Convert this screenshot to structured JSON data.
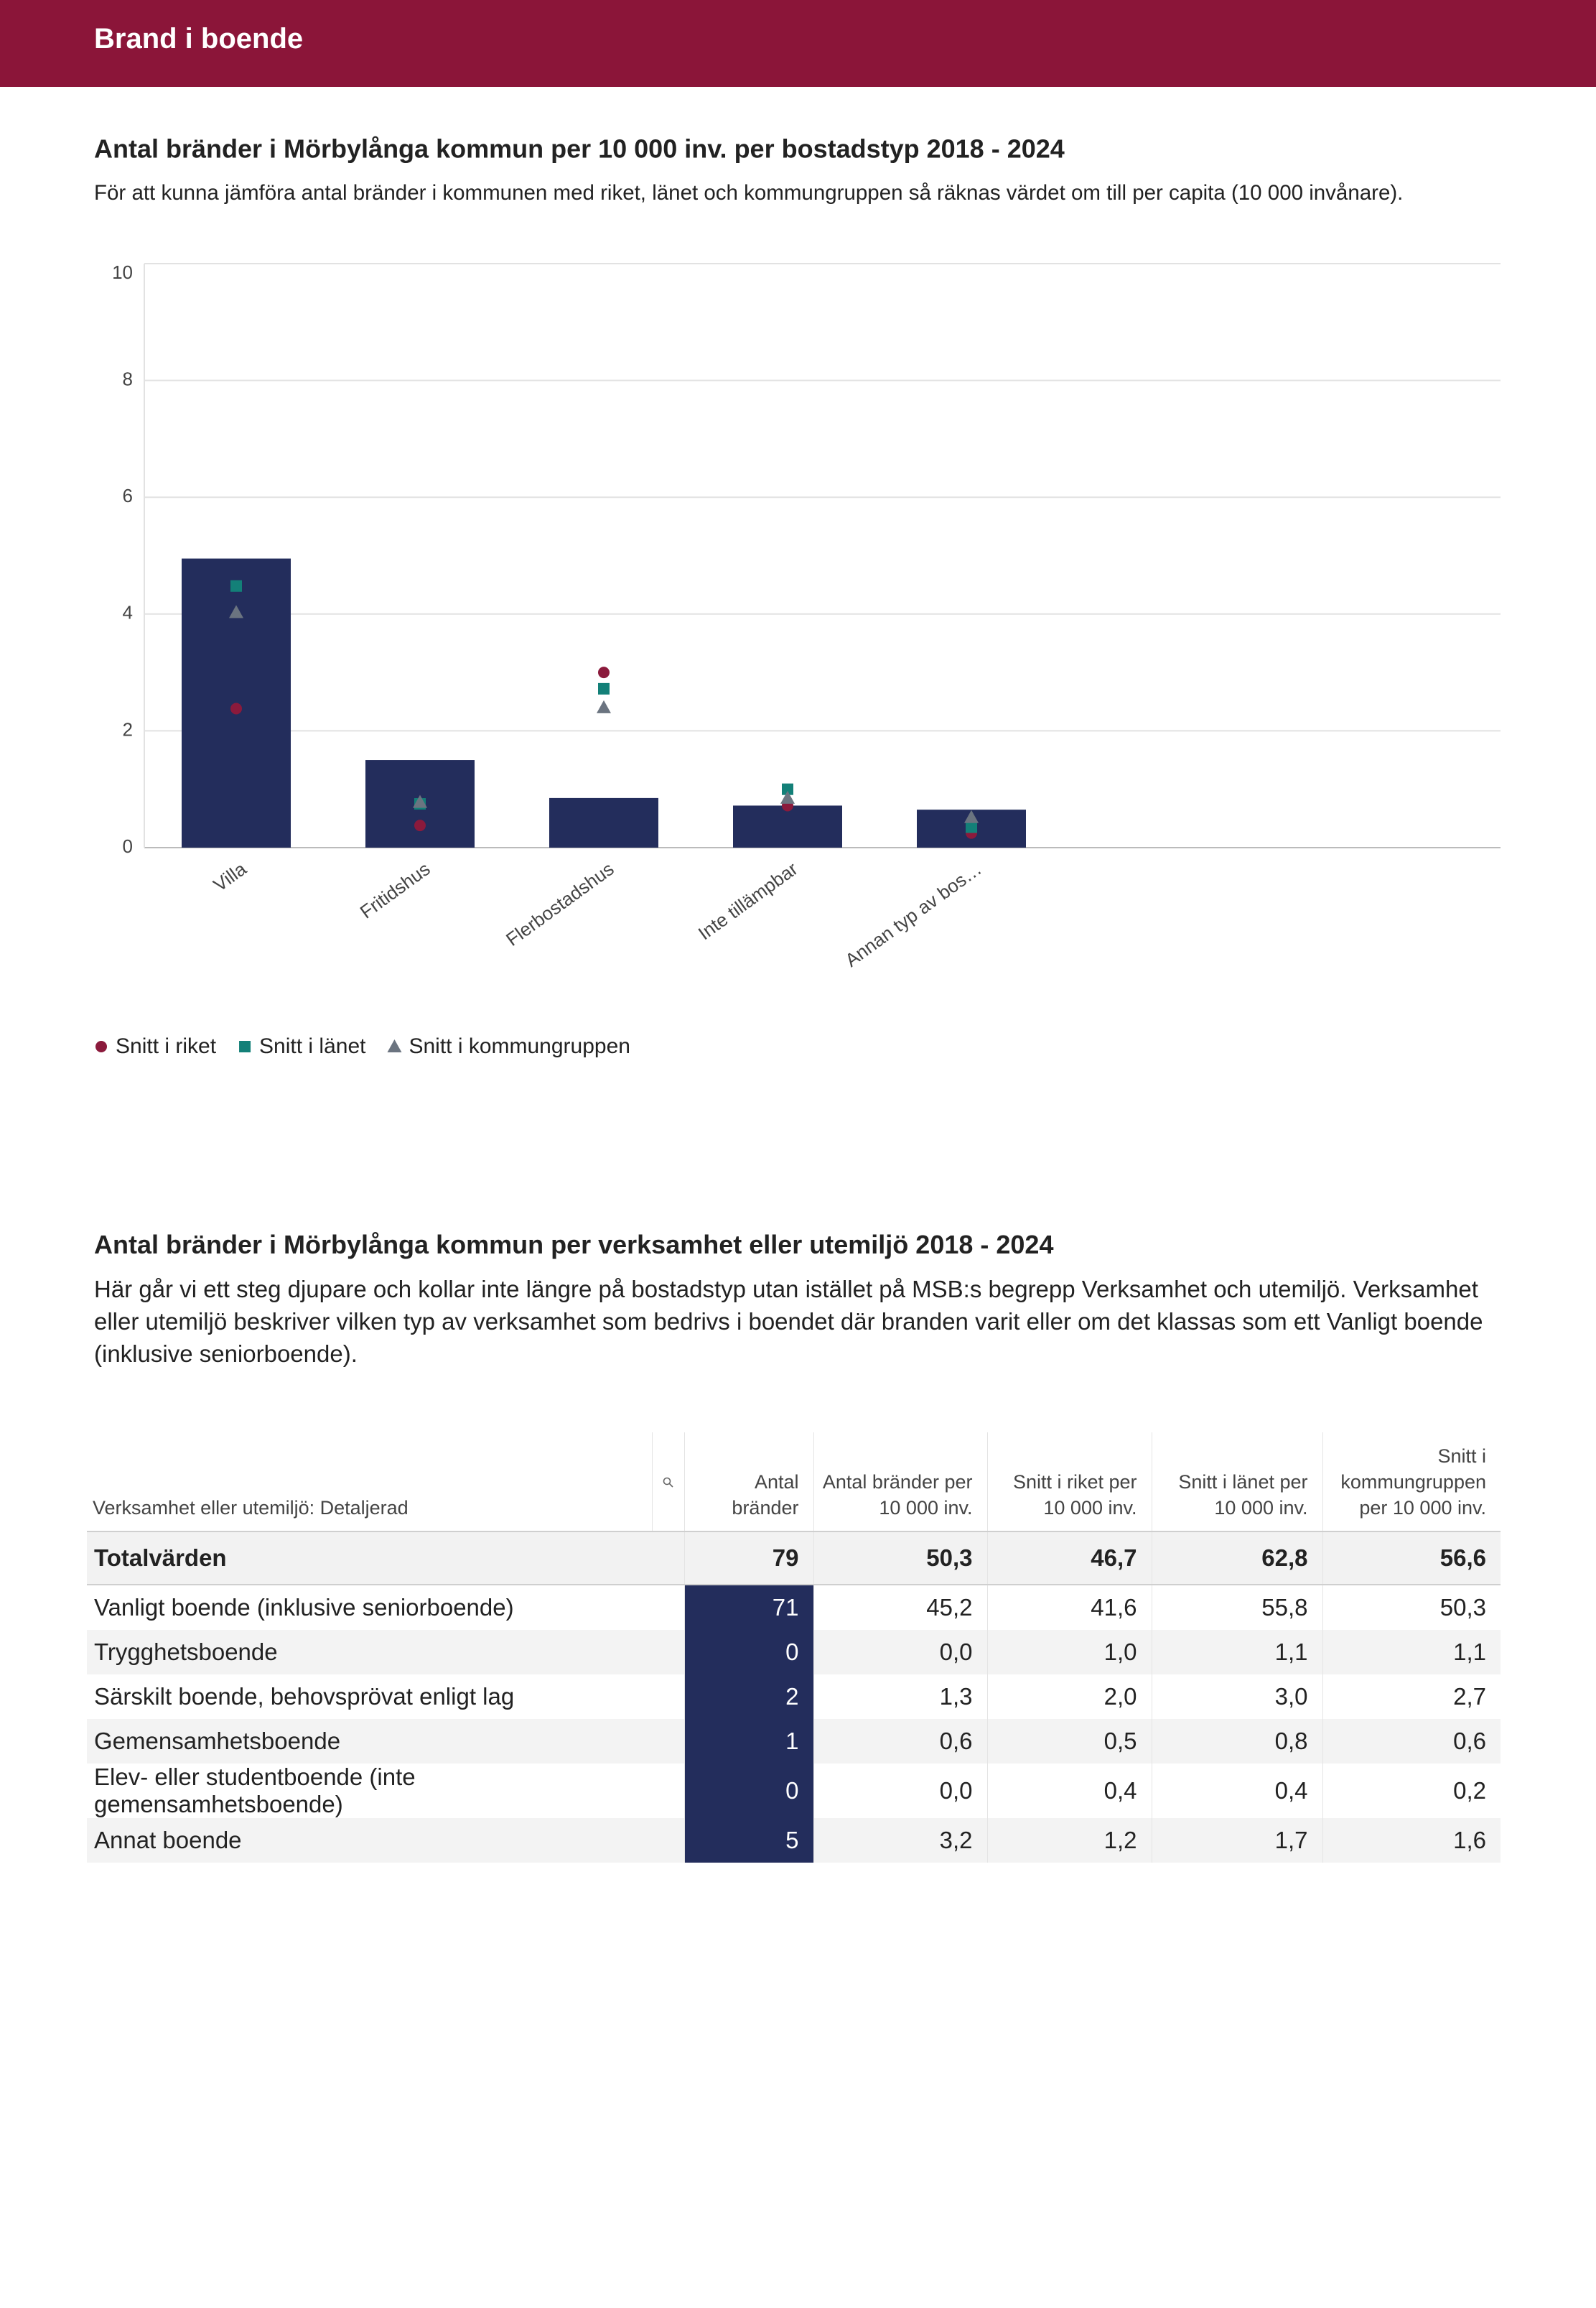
{
  "header": {
    "title": "Brand i boende"
  },
  "chart_data": {
    "type": "bar",
    "title": "Antal bränder i Mörbylånga kommun per 10 000 inv. per bostadstyp 2018 - 2024",
    "subtitle": "För att kunna jämföra antal bränder i kommunen med riket, länet och kommungruppen så räknas värdet om till per capita (10 000 invånare).",
    "categories": [
      "Villa",
      "Fritidshus",
      "Flerbostadshus",
      "Inte tillämpbar",
      "Annan typ av bos…"
    ],
    "values": [
      4.95,
      1.5,
      0.85,
      0.72,
      0.65
    ],
    "color": "#232d5c",
    "series": [
      {
        "name": "Snitt i riket",
        "color": "#8b1a3c",
        "marker": "circle",
        "values": [
          2.38,
          0.38,
          3.0,
          0.72,
          0.25
        ]
      },
      {
        "name": "Snitt i länet",
        "color": "#138078",
        "marker": "square",
        "values": [
          4.48,
          0.75,
          2.72,
          1.0,
          0.35
        ]
      },
      {
        "name": "Snitt i kommungruppen",
        "color": "#6b7480",
        "marker": "triangle",
        "values": [
          4.03,
          0.78,
          2.4,
          0.85,
          0.52
        ]
      }
    ],
    "ylim": [
      0,
      10
    ],
    "yticks": [
      0,
      2,
      4,
      6,
      8,
      10
    ],
    "grid": true,
    "legend": "bottom-left"
  },
  "section2": {
    "title": "Antal bränder i Mörbylånga kommun per verksamhet eller utemiljö 2018 - 2024",
    "text": "Här går vi ett steg djupare och kollar inte längre på bostadstyp utan istället på MSB:s begrepp Verksamhet och utemiljö. Verksamhet eller utemiljö beskriver vilken typ av verksamhet som bedrivs i boendet där branden varit eller om det klassas som ett Vanligt boende (inklusive seniorboende)."
  },
  "table": {
    "columns": [
      "Verksamhet eller utemiljö: Detaljerad",
      "Antal bränder",
      "Antal bränder per 10 000 inv.",
      "Snitt i riket per 10 000 inv.",
      "Snitt i länet per 10 000 inv.",
      "Snitt i kommungruppen per 10 000 inv."
    ],
    "total": [
      "Totalvärden",
      "79",
      "50,3",
      "46,7",
      "62,8",
      "56,6"
    ],
    "rows": [
      [
        "Vanligt boende (inklusive seniorboende)",
        "71",
        "45,2",
        "41,6",
        "55,8",
        "50,3"
      ],
      [
        "Trygghetsboende",
        "0",
        "0,0",
        "1,0",
        "1,1",
        "1,1"
      ],
      [
        "Särskilt boende, behovsprövat enligt lag",
        "2",
        "1,3",
        "2,0",
        "3,0",
        "2,7"
      ],
      [
        "Gemensamhetsboende",
        "1",
        "0,6",
        "0,5",
        "0,8",
        "0,6"
      ],
      [
        "Elev- eller studentboende (inte gemensamhetsboende)",
        "0",
        "0,0",
        "0,4",
        "0,4",
        "0,2"
      ],
      [
        "Annat boende",
        "5",
        "3,2",
        "1,2",
        "1,7",
        "1,6"
      ]
    ]
  }
}
